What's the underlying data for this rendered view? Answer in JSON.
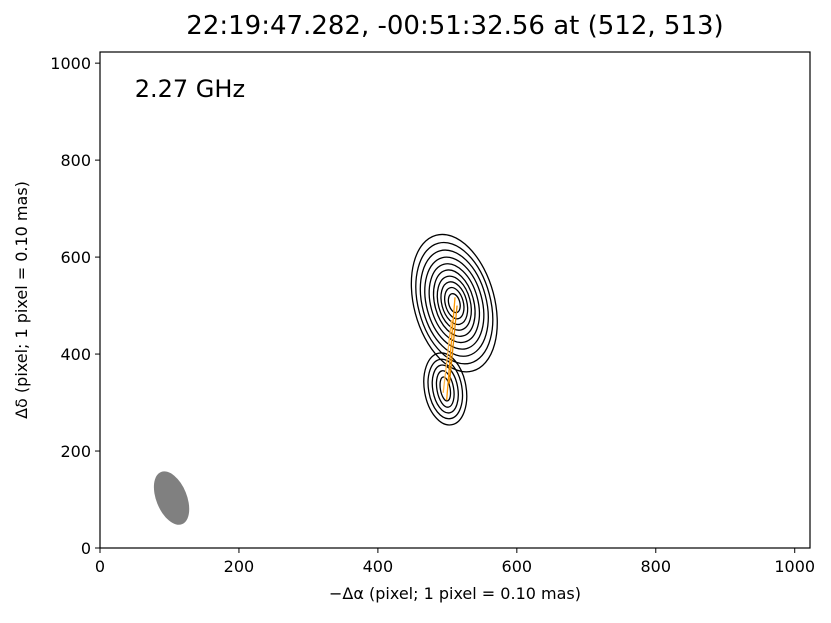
{
  "chart_data": {
    "type": "contour",
    "title": "22:19:47.282, -00:51:32.56 at (512, 513)",
    "annotation": "2.27 GHz",
    "annotation_position": [
      50,
      945
    ],
    "xlabel": "−Δα (pixel; 1 pixel = 0.10 mas)",
    "ylabel": "Δδ (pixel; 1 pixel = 0.10 mas)",
    "xlim": [
      0,
      1022
    ],
    "ylim": [
      0,
      1023
    ],
    "xticks": [
      0,
      200,
      400,
      600,
      800,
      1000
    ],
    "yticks": [
      0,
      200,
      400,
      600,
      800,
      1000
    ],
    "components": [
      {
        "color": "#000000",
        "cx": 510,
        "cy": 505,
        "angle": -15,
        "rx": [
          58,
          52,
          46,
          40,
          34,
          28,
          23,
          18,
          13,
          8
        ],
        "ry": [
          145,
          128,
          112,
          97,
          83,
          70,
          57,
          45,
          33,
          20
        ]
      },
      {
        "color": "#000000",
        "cx": 497,
        "cy": 328,
        "angle": -10,
        "rx": [
          30,
          24,
          18,
          12,
          7
        ],
        "ry": [
          75,
          62,
          50,
          38,
          25
        ]
      }
    ],
    "beam": {
      "color": "#808080",
      "cx": 103,
      "cy": 103,
      "rx": 22,
      "ry": 58,
      "angle": -22
    },
    "ridge_lines": [
      {
        "color": "#ff9900",
        "x": [
          511,
          499
        ],
        "y": [
          517,
          305
        ]
      },
      {
        "color": "#ffb84d",
        "x": [
          506,
          494
        ],
        "y": [
          470,
          320
        ]
      },
      {
        "color": "#e68a00",
        "x": [
          514,
          503
        ],
        "y": [
          500,
          340
        ]
      }
    ]
  }
}
